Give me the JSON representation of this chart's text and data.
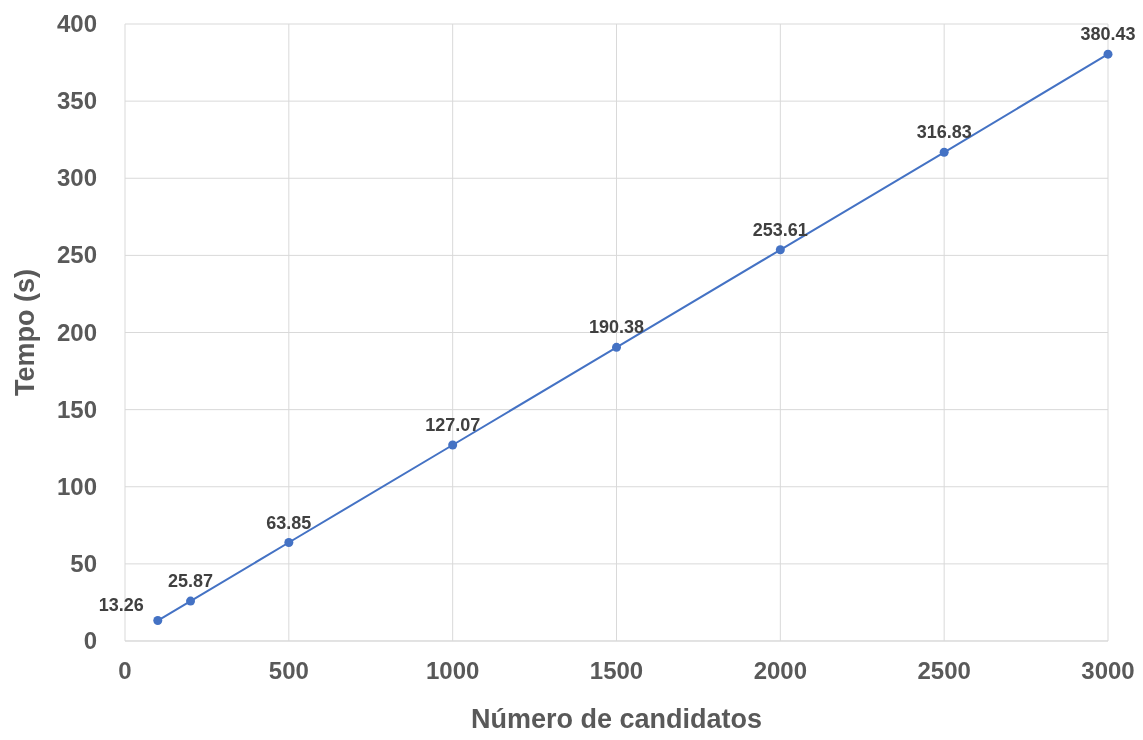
{
  "chart_data": {
    "type": "line",
    "xlabel": "Número de candidatos",
    "ylabel": "Tempo (s)",
    "x": [
      100,
      200,
      500,
      1000,
      1500,
      2000,
      2500,
      3000
    ],
    "series": [
      {
        "color": "#4472c4",
        "values": [
          13.26,
          25.87,
          63.85,
          127.07,
          190.38,
          253.61,
          316.83,
          380.43
        ]
      }
    ],
    "xlim": [
      0,
      3000
    ],
    "xticks": [
      0,
      500,
      1000,
      1500,
      2000,
      2500,
      3000
    ],
    "ylim": [
      0,
      400
    ],
    "yticks": [
      0,
      50,
      100,
      150,
      200,
      250,
      300,
      350,
      400
    ],
    "grid": true,
    "marker": "circle",
    "line_style": "solid",
    "data_labels": true
  }
}
